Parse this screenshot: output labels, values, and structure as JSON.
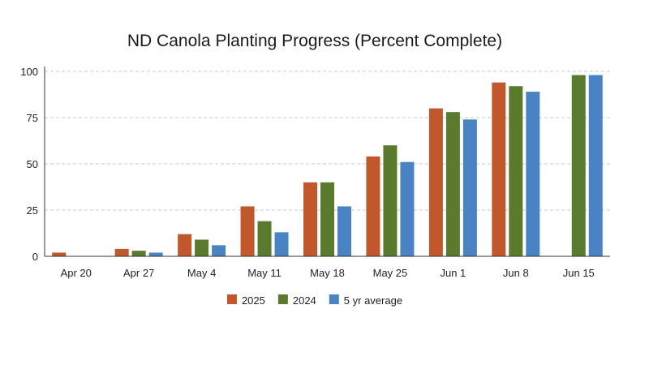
{
  "chart_data": {
    "type": "bar",
    "title": "ND Canola Planting Progress (Percent Complete)",
    "xlabel": "",
    "ylabel": "",
    "categories": [
      "Apr 20",
      "Apr 27",
      "May 4",
      "May 11",
      "May 18",
      "May 25",
      "Jun 1",
      "Jun 8",
      "Jun 15"
    ],
    "series": [
      {
        "name": "2025",
        "color": "#c0582b",
        "values": [
          2,
          4,
          12,
          27,
          40,
          54,
          80,
          94,
          null
        ]
      },
      {
        "name": "2024",
        "color": "#5a7a2e",
        "values": [
          0,
          3,
          9,
          19,
          40,
          60,
          78,
          92,
          98
        ]
      },
      {
        "name": "5 yr average",
        "color": "#4a83c4",
        "values": [
          0,
          2,
          6,
          13,
          27,
          51,
          74,
          89,
          98
        ]
      }
    ],
    "ylim": [
      0,
      100
    ],
    "yticks": [
      "0",
      "25",
      "50",
      "75",
      "100"
    ],
    "grid": true,
    "legend_position": "bottom-center"
  }
}
